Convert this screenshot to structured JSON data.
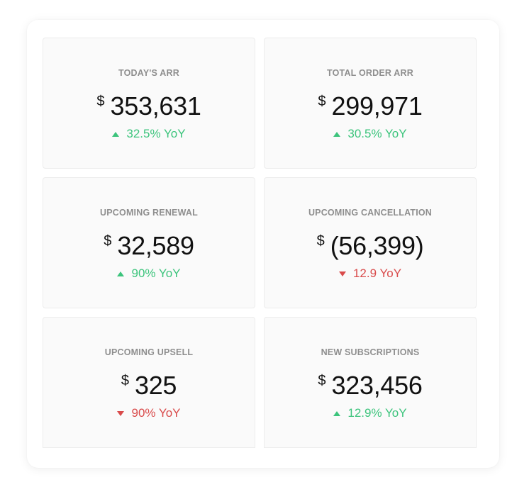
{
  "colors": {
    "positive": "#3cc47c",
    "negative": "#d94b4b",
    "title": "#8e8e8e",
    "value": "#111111"
  },
  "cards": [
    {
      "title": "TODAY'S ARR",
      "currency": "$",
      "amount": "353,631",
      "change": "32.5% YoY",
      "trend": "up",
      "arrow_icon": "triangle-up-icon"
    },
    {
      "title": "TOTAL ORDER ARR",
      "currency": "$",
      "amount": "299,971",
      "change": "30.5% YoY",
      "trend": "up",
      "arrow_icon": "triangle-up-icon"
    },
    {
      "title": "UPCOMING RENEWAL",
      "currency": "$",
      "amount": "32,589",
      "change": "90% YoY",
      "trend": "up",
      "arrow_icon": "triangle-up-icon"
    },
    {
      "title": "UPCOMING CANCELLATION",
      "currency": "$",
      "amount": "(56,399)",
      "change": "12.9 YoY",
      "trend": "down",
      "arrow_icon": "triangle-down-icon"
    },
    {
      "title": "UPCOMING UPSELL",
      "currency": "$",
      "amount": "325",
      "change": "90% YoY",
      "trend": "down",
      "arrow_icon": "triangle-down-icon"
    },
    {
      "title": "NEW SUBSCRIPTIONS",
      "currency": "$",
      "amount": "323,456",
      "change": "12.9% YoY",
      "trend": "up",
      "arrow_icon": "triangle-up-icon"
    }
  ]
}
